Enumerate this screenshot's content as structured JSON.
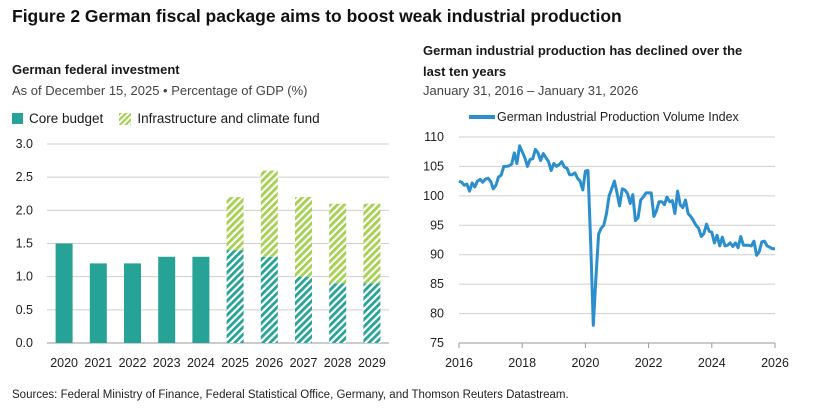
{
  "figure_title": "Figure 2   German fiscal package aims to boost weak industrial production",
  "source": "Sources: Federal Ministry of Finance, Federal Statistical Office, Germany, and Thomson Reuters Datastream.",
  "colors": {
    "core": "#26a396",
    "fund": "#a6d050",
    "line": "#2a8fcc",
    "grid": "#cfcfcf"
  },
  "chart_data": [
    {
      "type": "bar",
      "stacked": true,
      "title": "German federal investment",
      "subtitle": "As of December 15, 2025 • Percentage of GDP (%)",
      "categories": [
        "2020",
        "2021",
        "2022",
        "2023",
        "2024",
        "2025",
        "2026",
        "2027",
        "2028",
        "2029"
      ],
      "series": [
        {
          "name": "Core budget",
          "values": [
            1.5,
            1.2,
            1.2,
            1.3,
            1.3,
            1.4,
            1.3,
            1.0,
            0.9,
            0.9
          ]
        },
        {
          "name": "Infrastructure and climate fund",
          "values": [
            0,
            0,
            0,
            0,
            0,
            0.8,
            1.3,
            1.2,
            1.2,
            1.2
          ]
        }
      ],
      "hatched_from": "2025",
      "ylim": [
        0,
        3.0
      ],
      "yticks": [
        "0.0",
        "0.5",
        "1.0",
        "1.5",
        "2.0",
        "2.5",
        "3.0"
      ],
      "grid": true,
      "legend": "top-left"
    },
    {
      "type": "line",
      "title": "German industrial production has declined over the last ten years",
      "subtitle": "January 31, 2016 – January 31, 2026",
      "series": [
        {
          "name": "German Industrial Production Volume Index",
          "start": "2016-01",
          "frequency": "monthly",
          "values": [
            102.5,
            102.3,
            101.8,
            102,
            100.8,
            102.2,
            101.5,
            102.5,
            102.8,
            102.3,
            102.8,
            103,
            102.5,
            101.2,
            101.8,
            103.2,
            103.5,
            105,
            105,
            105.1,
            105.4,
            107.3,
            105.5,
            108.5,
            107.5,
            106.5,
            105,
            106.2,
            106.3,
            107.9,
            107.3,
            106,
            107.2,
            106.5,
            105.8,
            104.3,
            105.5,
            105,
            105.3,
            105.8,
            104.9,
            104.7,
            103.6,
            103.6,
            103.9,
            103,
            102.5,
            101,
            104.2,
            104.3,
            92,
            78,
            86,
            93.5,
            94.5,
            95,
            97,
            100,
            101.2,
            102.5,
            100.5,
            98.3,
            101.2,
            101,
            100.4,
            98.7,
            100.2,
            95.8,
            96.3,
            99.3,
            99.8,
            100.5,
            100.5,
            100.5,
            96.5,
            97.5,
            99,
            99,
            98.5,
            99.8,
            99,
            99.2,
            97,
            100.8,
            98.5,
            98,
            99.3,
            97,
            96.5,
            95.8,
            95,
            94.5,
            93.1,
            93.6,
            95.2,
            94,
            93.8,
            92,
            93.3,
            91.5,
            93,
            91.5,
            91.6,
            92,
            91.4,
            92,
            91.2,
            93.1,
            91.6,
            91.6,
            91.6,
            91.5,
            92.3,
            89.9,
            90.5,
            92.2,
            92.3,
            91.5,
            91.3,
            91.0,
            91.0
          ]
        }
      ],
      "xlim": [
        2016,
        2026
      ],
      "xticks": [
        "2016",
        "2018",
        "2020",
        "2022",
        "2024",
        "2026"
      ],
      "ylim": [
        75,
        110
      ],
      "yticks": [
        "75",
        "80",
        "85",
        "90",
        "95",
        "100",
        "105",
        "110"
      ],
      "grid": true,
      "legend": "top"
    }
  ]
}
